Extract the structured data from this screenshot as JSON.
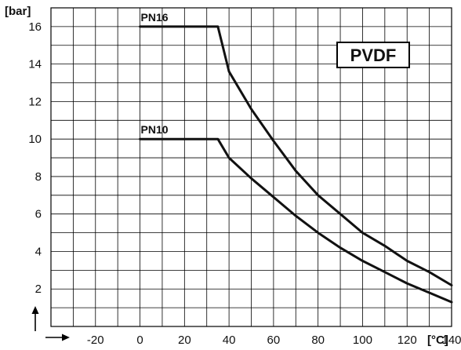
{
  "chart_data": {
    "type": "line",
    "x_unit": "[°C]",
    "y_unit": "[bar]",
    "material": "PVDF",
    "xlim": [
      -40,
      140
    ],
    "ylim": [
      0,
      17
    ],
    "x_ticks": [
      -20,
      0,
      20,
      40,
      60,
      80,
      100,
      120,
      140
    ],
    "y_ticks": [
      2,
      4,
      6,
      8,
      10,
      12,
      14,
      16
    ],
    "grid": true,
    "series": [
      {
        "name": "PN16",
        "x": [
          0,
          35,
          40,
          50,
          60,
          70,
          80,
          90,
          100,
          110,
          120,
          130,
          140
        ],
        "y": [
          16,
          16,
          13.6,
          11.6,
          9.9,
          8.3,
          7.0,
          6.0,
          5.0,
          4.3,
          3.5,
          2.9,
          2.2
        ]
      },
      {
        "name": "PN10",
        "x": [
          0,
          35,
          40,
          50,
          60,
          70,
          80,
          90,
          100,
          110,
          120,
          130,
          140
        ],
        "y": [
          10,
          10,
          9.0,
          7.9,
          6.9,
          5.9,
          5.0,
          4.2,
          3.5,
          2.9,
          2.3,
          1.8,
          1.3
        ]
      }
    ]
  }
}
